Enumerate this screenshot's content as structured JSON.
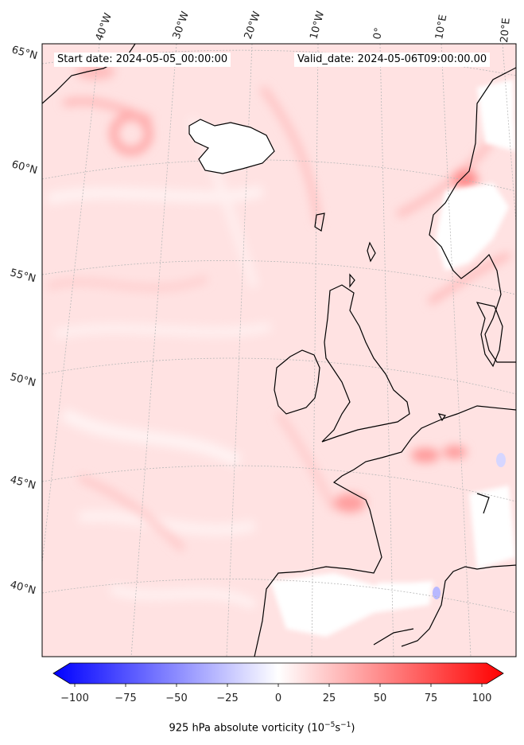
{
  "map": {
    "start_text": "Start date: 2024-05-05_00:00:00",
    "valid_text": "Valid_date: 2024-05-06T09:00:00.00",
    "lon_labels": [
      "40°W",
      "30°W",
      "20°W",
      "10°W",
      "0°",
      "10°E",
      "20°E"
    ],
    "lat_labels": [
      "65°N",
      "60°N",
      "55°N",
      "50°N",
      "45°N",
      "40°N"
    ],
    "colorbar": {
      "ticks": [
        "−100",
        "−75",
        "−50",
        "−25",
        "0",
        "25",
        "50",
        "75",
        "100"
      ],
      "label_prefix": "925 hPa absolute vorticity (10",
      "label_exp1": "−5",
      "label_mid": "s",
      "label_exp2": "−1",
      "label_suffix": ")",
      "min": -100,
      "max": 100,
      "colormap": "bwr",
      "color_min": "#0000ff",
      "color_mid": "#ffffff",
      "color_max": "#ff0000"
    },
    "colors": {
      "field_base": "#ffe3e3",
      "coastline": "#000000",
      "gridline": "#b0b0b0"
    }
  }
}
